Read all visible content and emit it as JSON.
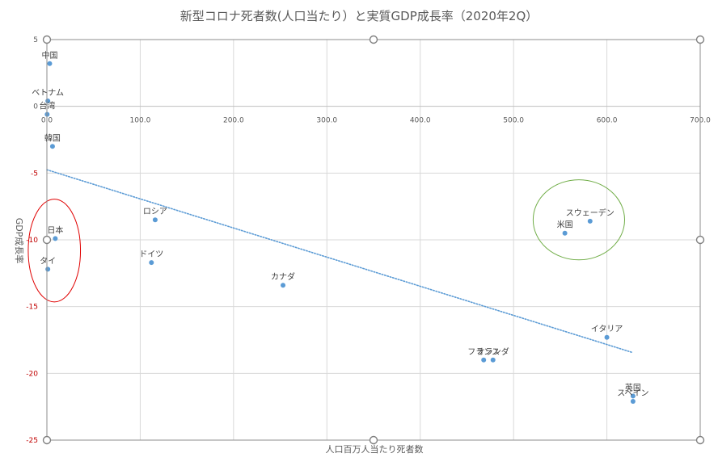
{
  "chart_data": {
    "type": "scatter",
    "title": "新型コロナ死者数(人口当たり）と実質GDP成長率（2020年2Q）",
    "xlabel": "人口百万人当たり死者数",
    "ylabel": "GDP成長率",
    "xlim": [
      0,
      700
    ],
    "ylim": [
      -25,
      5
    ],
    "x_ticks": [
      "0.0",
      "100.0",
      "200.0",
      "300.0",
      "400.0",
      "500.0",
      "600.0",
      "700.0"
    ],
    "y_ticks": [
      "5",
      "0",
      "-5",
      "-10",
      "-15",
      "-20",
      "-25"
    ],
    "grid": true,
    "marker_color": "#5b9bd5",
    "points": [
      {
        "label": "中国",
        "x": 3,
        "y": 3.2
      },
      {
        "label": "ベトナム",
        "x": 1,
        "y": 0.4
      },
      {
        "label": "台湾",
        "x": 0.3,
        "y": -0.6
      },
      {
        "label": "韓国",
        "x": 6,
        "y": -3.0
      },
      {
        "label": "日本",
        "x": 9,
        "y": -9.9
      },
      {
        "label": "タイ",
        "x": 1,
        "y": -12.2
      },
      {
        "label": "ロシア",
        "x": 116,
        "y": -8.5
      },
      {
        "label": "ドイツ",
        "x": 112,
        "y": -11.7
      },
      {
        "label": "カナダ",
        "x": 253,
        "y": -13.4
      },
      {
        "label": "フランス",
        "x": 468,
        "y": -19.0
      },
      {
        "label": "オランダ",
        "x": 478,
        "y": -19.0
      },
      {
        "label": "米国",
        "x": 555,
        "y": -9.5
      },
      {
        "label": "スウェーデン",
        "x": 582,
        "y": -8.6
      },
      {
        "label": "イタリア",
        "x": 600,
        "y": -17.3
      },
      {
        "label": "英国",
        "x": 628,
        "y": -21.7
      },
      {
        "label": "スペイン",
        "x": 628,
        "y": -22.1
      }
    ],
    "trendline": {
      "style": "dotted",
      "color": "#5b9bd5",
      "x": [
        0,
        628
      ],
      "y": [
        -4.75,
        -18.45
      ]
    },
    "annotations": [
      {
        "shape": "ellipse",
        "color": "#e00000",
        "cx": 8,
        "cy": -10.8,
        "rx": 28,
        "ry": 3.85
      },
      {
        "shape": "ellipse",
        "color": "#70ad47",
        "cx": 570,
        "cy": -8.5,
        "rx": 49,
        "ry": 3.0
      }
    ]
  }
}
